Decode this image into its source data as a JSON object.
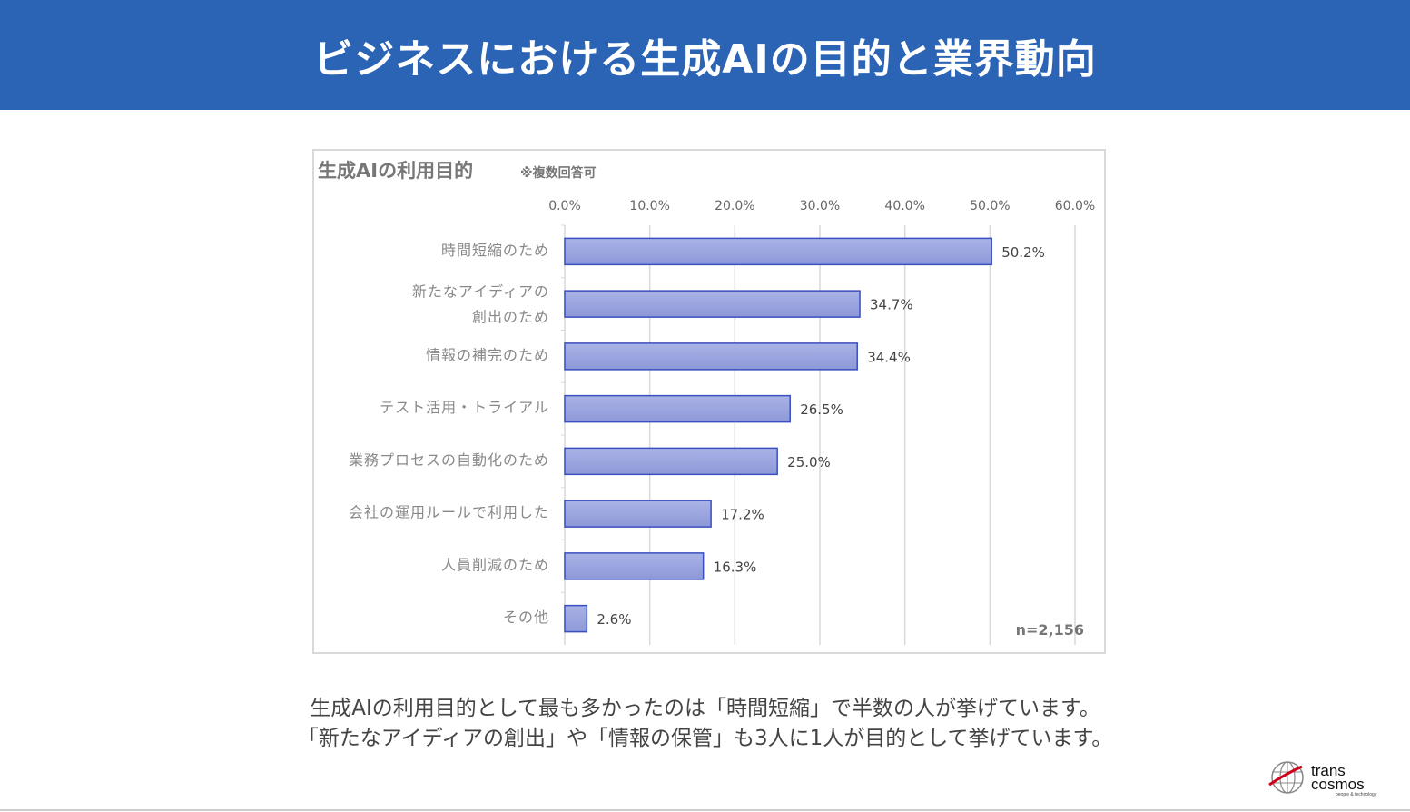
{
  "header": {
    "title": "ビジネスにおける生成AIの目的と業界動向"
  },
  "chart_data": {
    "type": "bar",
    "orientation": "horizontal",
    "title": "生成AIの利用目的",
    "subtitle": "※複数回答可",
    "categories": [
      [
        "時間短縮のため"
      ],
      [
        "新たなアイディアの",
        "創出のため"
      ],
      [
        "情報の補完のため"
      ],
      [
        "テスト活用・トライアル"
      ],
      [
        "業務プロセスの自動化のため"
      ],
      [
        "会社の運用ルールで利用した"
      ],
      [
        "人員削減のため"
      ],
      [
        "その他"
      ]
    ],
    "values": [
      50.2,
      34.7,
      34.4,
      26.5,
      25.0,
      17.2,
      16.3,
      2.6
    ],
    "data_labels": [
      "50.2%",
      "34.7%",
      "34.4%",
      "26.5%",
      "25.0%",
      "17.2%",
      "16.3%",
      "2.6%"
    ],
    "xlim": [
      0,
      60
    ],
    "xticks": [
      "0.0%",
      "10.0%",
      "20.0%",
      "30.0%",
      "40.0%",
      "50.0%",
      "60.0%"
    ],
    "grid": true,
    "annotation": "n=2,156",
    "colors": {
      "bar_fill": "#9ea8e0",
      "bar_stroke": "#3a4fc0",
      "grid": "#d9d9d9"
    }
  },
  "caption": {
    "line1": "生成AIの利用目的として最も多かったのは「時間短縮」で半数の人が挙げています。",
    "line2": "「新たなアイディアの創出」や「情報の保管」も3人に1人が目的として挙げています。"
  },
  "logo": {
    "text1": "trans",
    "text2": "cosmos",
    "tagline": "people & technology"
  }
}
